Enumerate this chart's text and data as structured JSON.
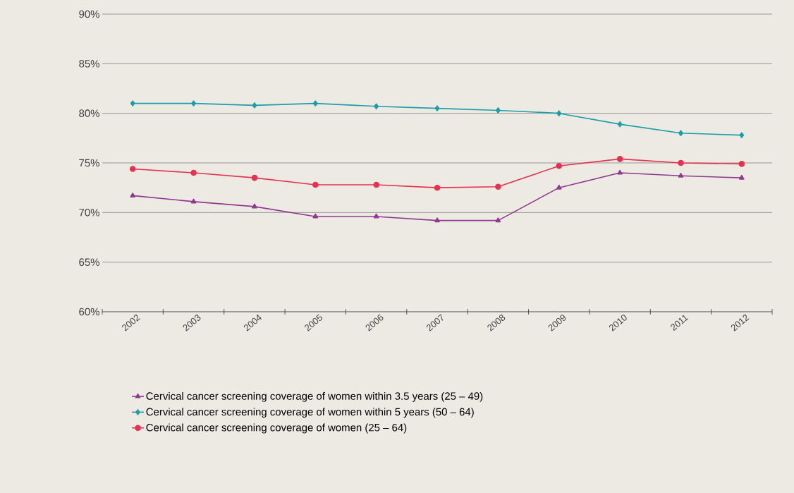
{
  "chart_data": {
    "type": "line",
    "categories": [
      "2002",
      "2003",
      "2004",
      "2005",
      "2006",
      "2007",
      "2008",
      "2009",
      "2010",
      "2011",
      "2012"
    ],
    "series": [
      {
        "name": "Cervical cancer screening coverage of women within 3.5 years (25 – 49)",
        "color": "#8e3a8e",
        "marker": "triangle",
        "values": [
          71.7,
          71.1,
          70.6,
          69.6,
          69.6,
          69.2,
          69.2,
          72.5,
          74.0,
          73.7,
          73.5
        ]
      },
      {
        "name": "Cervical cancer screening coverage of women within 5 years (50 – 64)",
        "color": "#1a9fa8",
        "marker": "diamond",
        "values": [
          81.0,
          81.0,
          80.8,
          81.0,
          80.7,
          80.5,
          80.3,
          80.0,
          78.9,
          78.0,
          77.8
        ]
      },
      {
        "name": "Cervical cancer screening coverage of women (25 – 64)",
        "color": "#e8304f",
        "marker": "circle",
        "values": [
          74.4,
          74.0,
          73.5,
          72.8,
          72.8,
          72.5,
          72.6,
          74.7,
          75.4,
          75.0,
          74.9
        ]
      }
    ],
    "ylim": [
      60,
      90
    ],
    "yticks": [
      {
        "value": 60,
        "label": "60%"
      },
      {
        "value": 65,
        "label": "65%"
      },
      {
        "value": 70,
        "label": "70%"
      },
      {
        "value": 75,
        "label": "75%"
      },
      {
        "value": 80,
        "label": "80%"
      },
      {
        "value": 85,
        "label": "85%"
      },
      {
        "value": 90,
        "label": "90%"
      }
    ],
    "grid": "y",
    "legend": "bottom",
    "line_style": "solid"
  }
}
